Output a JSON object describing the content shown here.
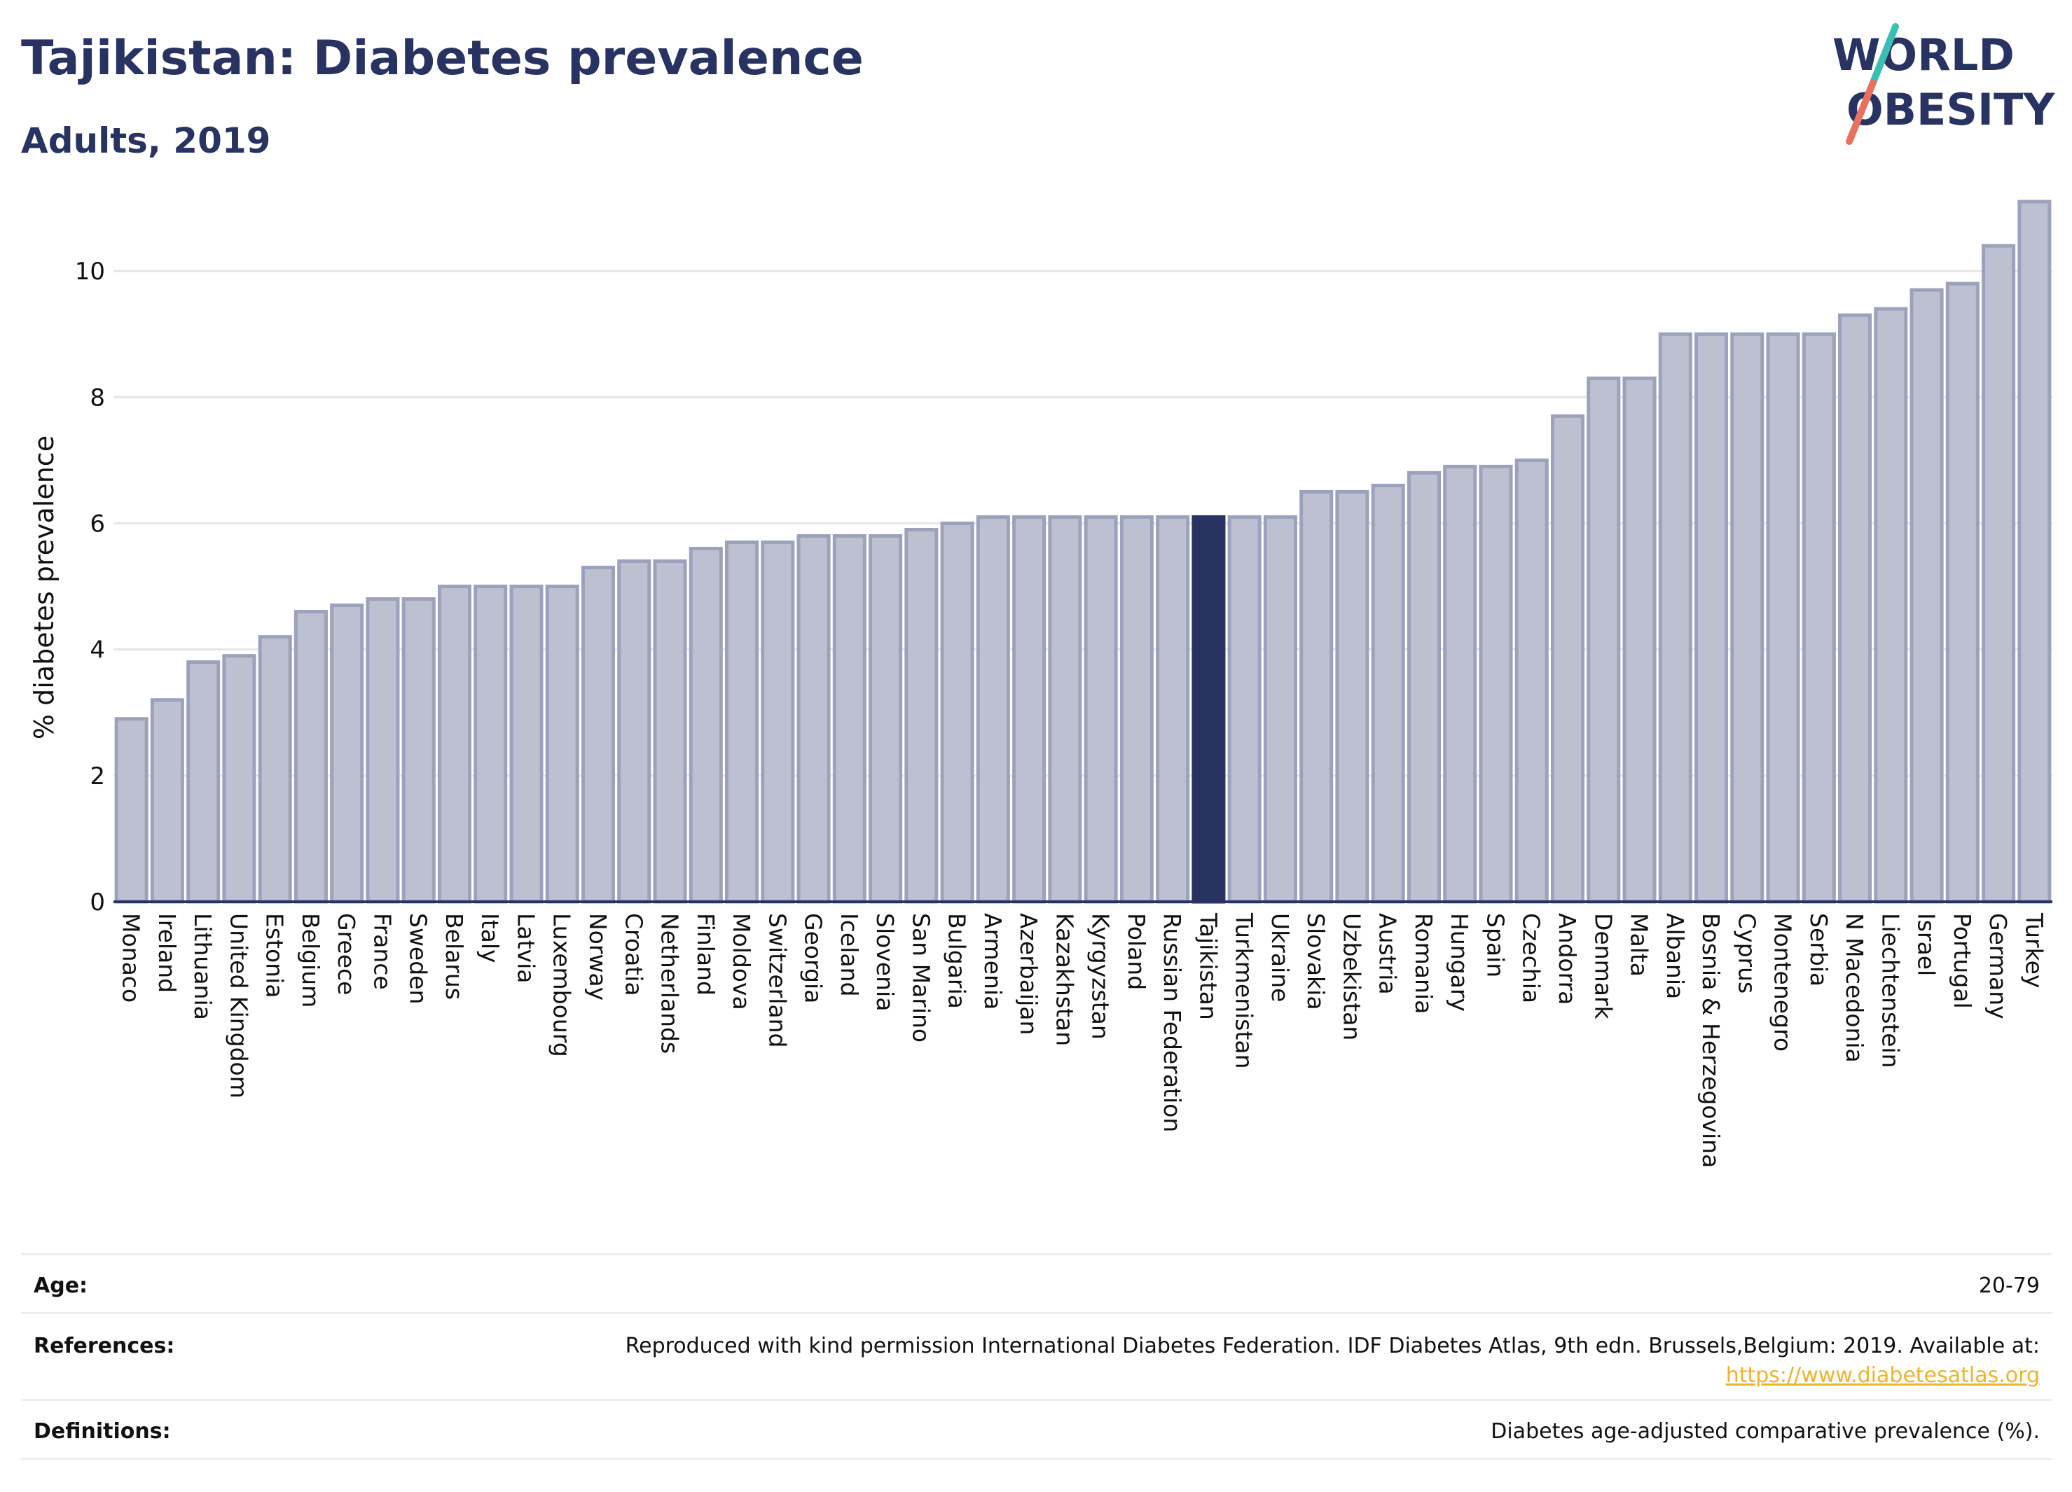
{
  "header": {
    "title": "Tajikistan: Diabetes prevalence",
    "subtitle": "Adults, 2019"
  },
  "logo": {
    "line1": "WORLD",
    "line2": "OBESITY",
    "colors": {
      "text": "#283362",
      "slash_top": "#3bbfb5",
      "slash_bottom": "#e8725f"
    }
  },
  "colors": {
    "bar_fill": "#bcc0d0",
    "bar_stroke": "#9ca2bc",
    "highlight": "#283362",
    "grid": "#e6e6e6",
    "axis": "#283362"
  },
  "chart_data": {
    "type": "bar",
    "ylabel": "% diabetes prevalence",
    "xlabel": "",
    "ylim": [
      0,
      11.3
    ],
    "yticks": [
      0,
      2,
      4,
      6,
      8,
      10
    ],
    "grid": true,
    "highlight": "Tajikistan",
    "categories": [
      "Monaco",
      "Ireland",
      "Lithuania",
      "United Kingdom",
      "Estonia",
      "Belgium",
      "Greece",
      "France",
      "Sweden",
      "Belarus",
      "Italy",
      "Latvia",
      "Luxembourg",
      "Norway",
      "Croatia",
      "Netherlands",
      "Finland",
      "Moldova",
      "Switzerland",
      "Georgia",
      "Iceland",
      "Slovenia",
      "San Marino",
      "Bulgaria",
      "Armenia",
      "Azerbaijan",
      "Kazakhstan",
      "Kyrgyzstan",
      "Poland",
      "Russian Federation",
      "Tajikistan",
      "Turkmenistan",
      "Ukraine",
      "Slovakia",
      "Uzbekistan",
      "Austria",
      "Romania",
      "Hungary",
      "Spain",
      "Czechia",
      "Andorra",
      "Denmark",
      "Malta",
      "Albania",
      "Bosnia & Herzegovina",
      "Cyprus",
      "Montenegro",
      "Serbia",
      "N Macedonia",
      "Liechtenstein",
      "Israel",
      "Portugal",
      "Germany",
      "Turkey"
    ],
    "values": [
      2.9,
      3.2,
      3.8,
      3.9,
      4.2,
      4.6,
      4.7,
      4.8,
      4.8,
      5.0,
      5.0,
      5.0,
      5.0,
      5.3,
      5.4,
      5.4,
      5.6,
      5.7,
      5.7,
      5.8,
      5.8,
      5.8,
      5.9,
      6.0,
      6.1,
      6.1,
      6.1,
      6.1,
      6.1,
      6.1,
      6.1,
      6.1,
      6.1,
      6.5,
      6.5,
      6.6,
      6.8,
      6.9,
      6.9,
      7.0,
      7.7,
      8.3,
      8.3,
      9.0,
      9.0,
      9.0,
      9.0,
      9.0,
      9.3,
      9.4,
      9.7,
      9.8,
      10.4,
      11.1
    ]
  },
  "info": {
    "age_label": "Age:",
    "age_value": "20-79",
    "references_label": "References:",
    "references_text": "Reproduced with kind permission International Diabetes Federation. IDF Diabetes Atlas, 9th edn. Brussels,Belgium: 2019. Available at:",
    "references_link": "https://www.diabetesatlas.org",
    "definitions_label": "Definitions:",
    "definitions_value": "Diabetes age-adjusted comparative prevalence (%)."
  }
}
